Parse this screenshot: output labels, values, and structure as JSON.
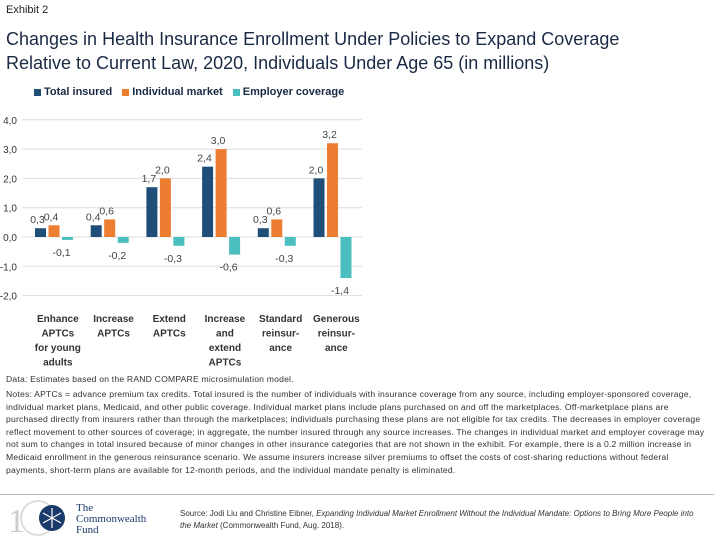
{
  "exhibit": "Exhibit 2",
  "title_line1": "Changes in Health Insurance Enrollment Under Policies to Expand Coverage",
  "title_line2": "Relative to Current Law, 2020, Individuals Under Age 65 (in millions)",
  "chart_data": {
    "type": "bar",
    "categories": [
      [
        "Enhance",
        "APTCs",
        "for young",
        "adults"
      ],
      [
        "Increase",
        "APTCs"
      ],
      [
        "Extend",
        "APTCs"
      ],
      [
        "Increase",
        "and",
        "extend",
        "APTCs"
      ],
      [
        "Standard",
        "reinsur-",
        "ance"
      ],
      [
        "Generous",
        "reinsur-",
        "ance"
      ]
    ],
    "series": [
      {
        "name": "Total insured",
        "color": "#1f4e79",
        "values": [
          0.3,
          0.4,
          1.7,
          2.4,
          0.3,
          2.0
        ],
        "labels": [
          "0,3",
          "0,4",
          "1,7",
          "2,4",
          "0,3",
          "2,0"
        ]
      },
      {
        "name": "Individual market",
        "color": "#ed7d31",
        "values": [
          0.4,
          0.6,
          2.0,
          3.0,
          0.6,
          3.2
        ],
        "labels": [
          "0,4",
          "0,6",
          "2,0",
          "3,0",
          "0,6",
          "3,2"
        ]
      },
      {
        "name": "Employer coverage",
        "color": "#4bbfbf",
        "values": [
          -0.1,
          -0.2,
          -0.3,
          -0.6,
          -0.3,
          -1.4
        ],
        "labels": [
          "-0,1",
          "-0,2",
          "-0,3",
          "-0,6",
          "-0,3",
          "-1,4"
        ]
      }
    ],
    "ylim": [
      -2,
      4
    ],
    "yticks": [
      "-2,0",
      "-1,0",
      "0,0",
      "1,0",
      "2,0",
      "3,0",
      "4,0"
    ],
    "grid": true,
    "legend": "top-left"
  },
  "data_note": "Data: Estimates based on the RAND COMPARE microsimulation model.",
  "notes": "Notes: APTCs = advance premium tax credits. Total insured is the number of individuals with insurance coverage from any source, including employer-sponsored coverage, individual market plans, Medicaid, and other public coverage. Individual market plans include plans purchased on and off the marketplaces. Off-marketplace plans are purchased directly from insurers rather than through the marketplaces; individuals purchasing these plans are not eligible for tax credits. The decreases in employer coverage reflect movement to other sources of coverage; in aggregate, the number insured through any source increases. The changes in individual market and employer coverage may not sum to changes in total insured because of minor changes in other insurance categories that are not shown in the exhibit. For example, there is a 0.2 million increase in Medicaid enrollment in the generous reinsurance scenario. We assume insurers increase silver premiums to offset the costs of cost-sharing reductions without federal payments, short-term plans are available for 12-month periods, and the individual mandate penalty is eliminated.",
  "source": {
    "prefix": "Source: Jodi Liu and Christine Eibner, ",
    "title": "Expanding Individual Market Enrollment Without the Individual Mandate: Options to Bring More People into the Market",
    "suffix": " (Commonwealth Fund, Aug. 2018)."
  },
  "logo": {
    "line1": "The",
    "line2": "Commonwealth",
    "line3": "Fund"
  }
}
